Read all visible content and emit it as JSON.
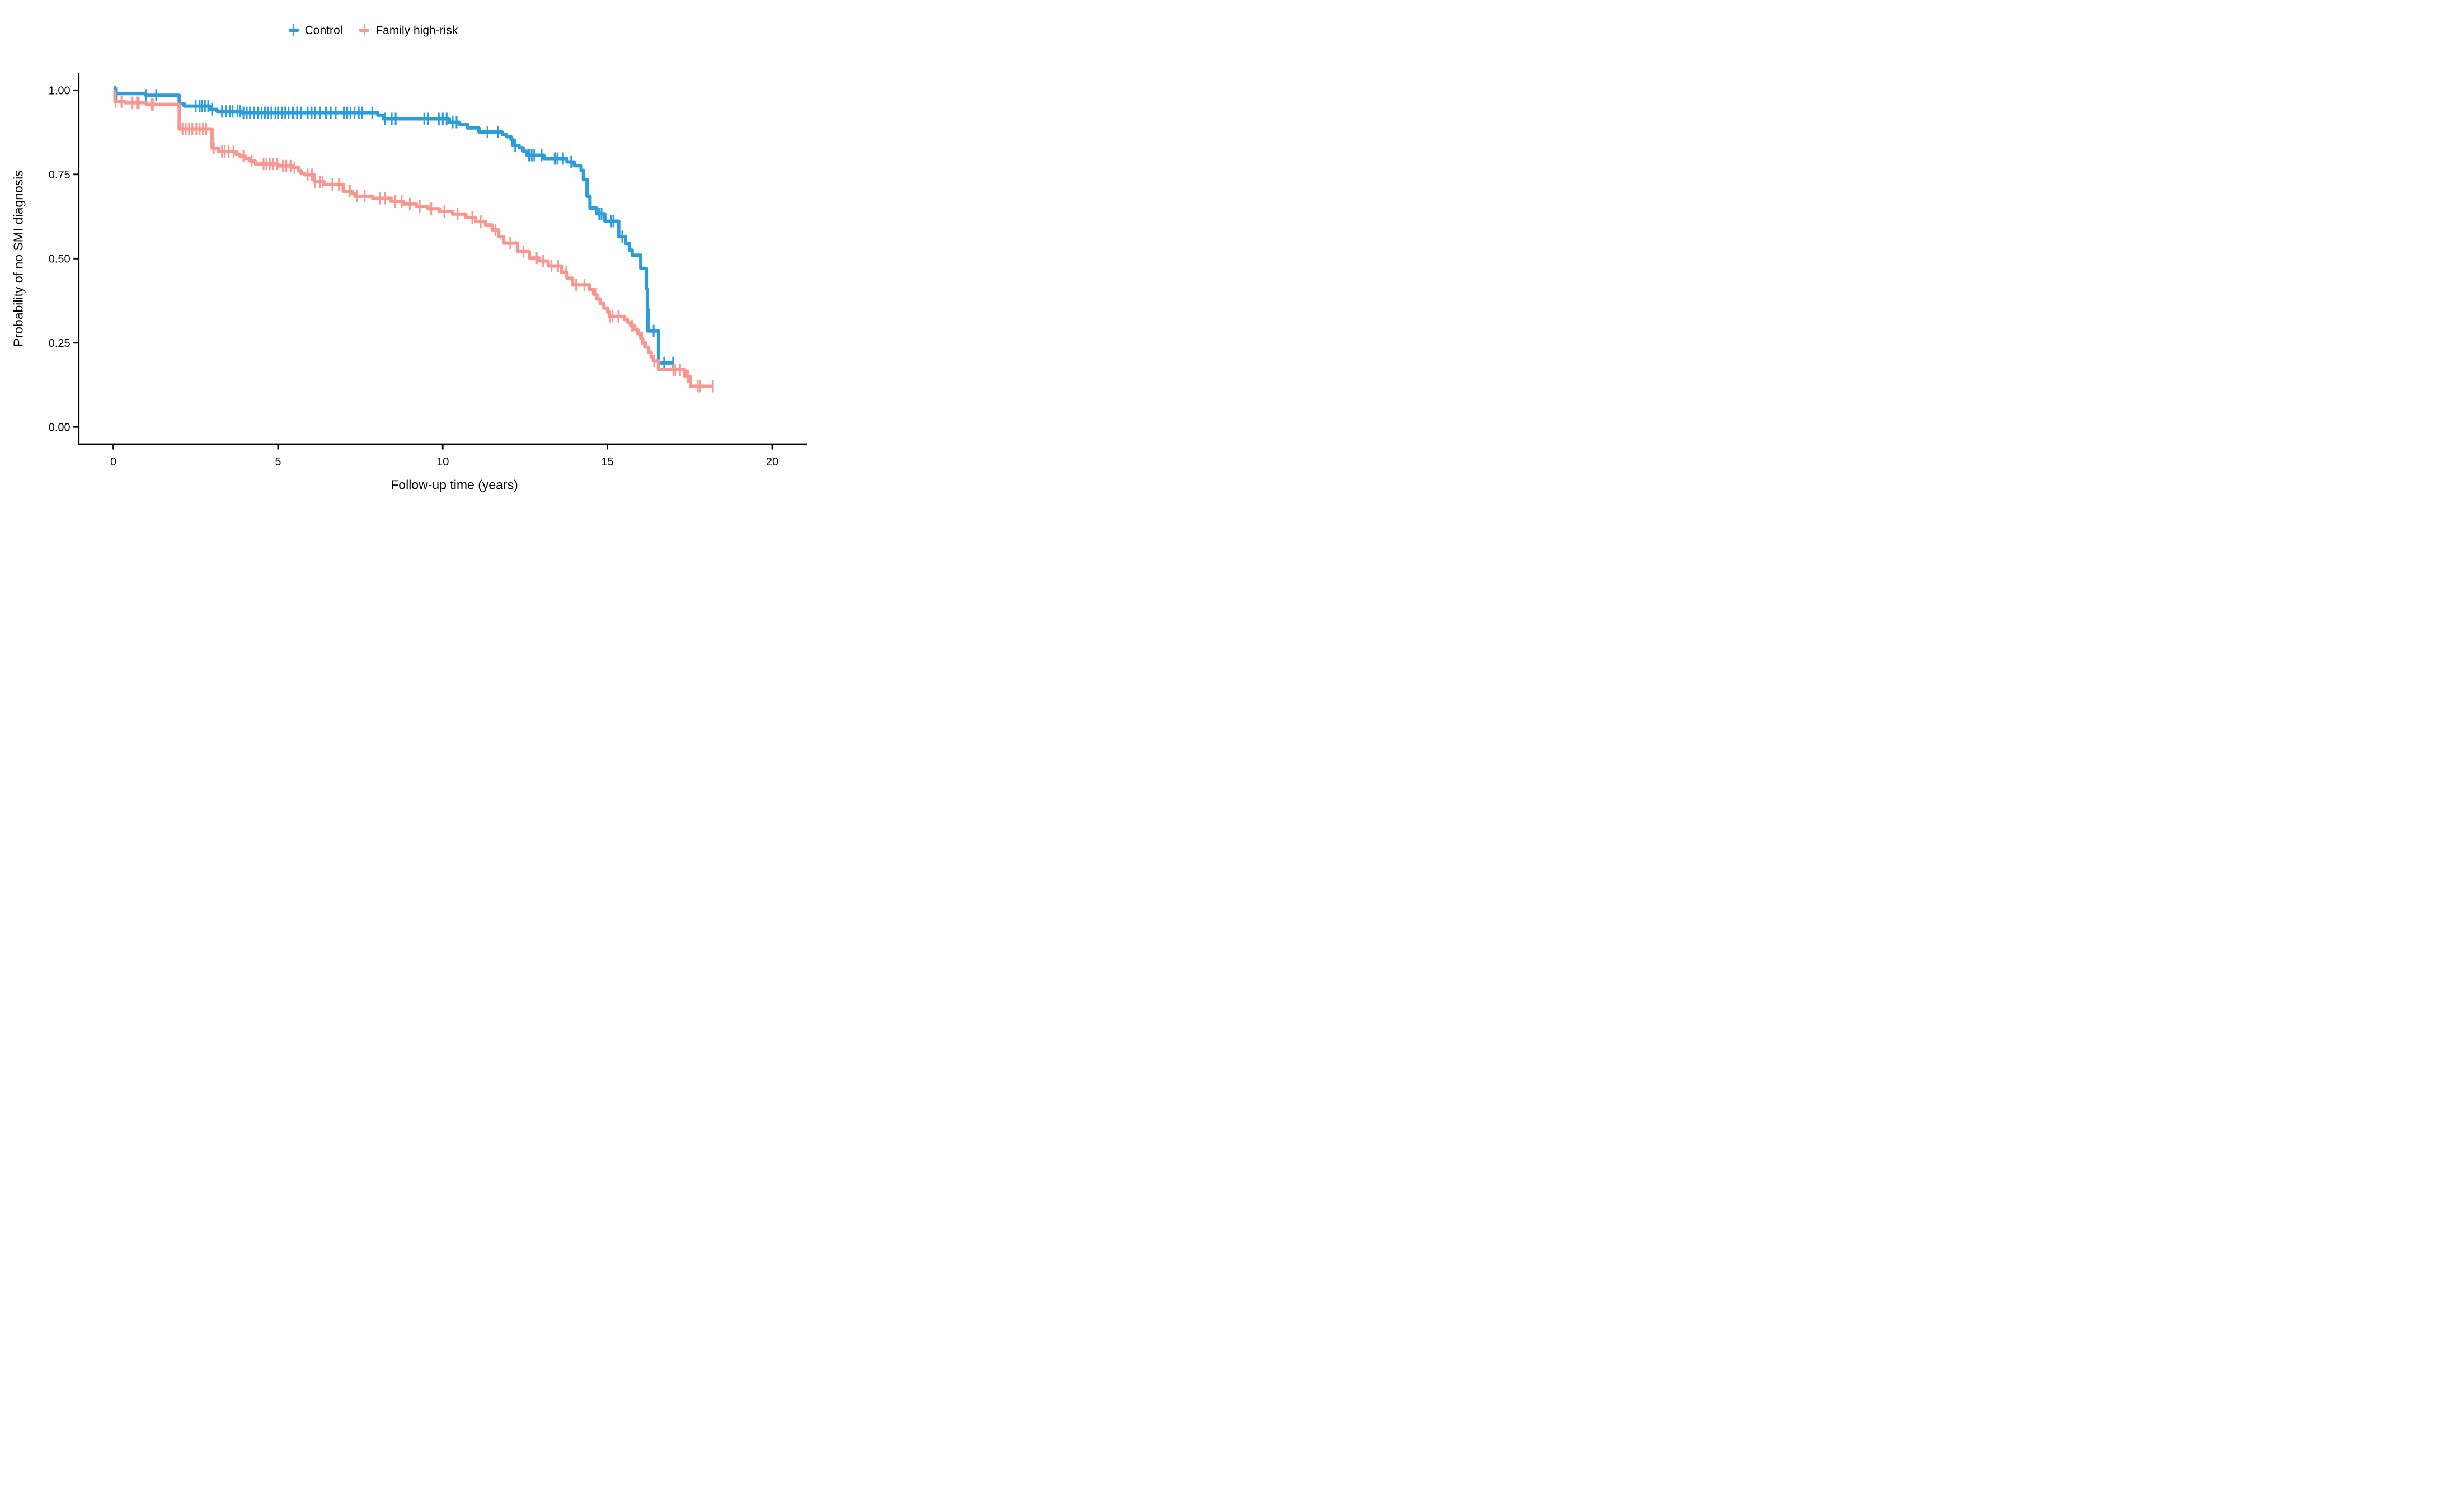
{
  "figure": {
    "legend": {
      "items": [
        {
          "label": "Control",
          "color": "#2D9CDB"
        },
        {
          "label": "Family high-risk",
          "color": "#F9968F"
        }
      ]
    },
    "chart_data": {
      "type": "line",
      "subtype": "kaplan-meier-step",
      "title": "",
      "xlabel": "Follow-up time (years)",
      "ylabel": "Probability of no SMI diagnosis",
      "x_ticks": [
        0,
        5,
        10,
        15,
        20
      ],
      "x_tick_labels": [
        "0",
        "5",
        "10",
        "15",
        "20"
      ],
      "y_ticks": [
        1.0,
        0.75,
        0.5,
        0.25,
        0.0
      ],
      "y_tick_labels": [
        "1.00",
        "0.75",
        "0.50",
        "0.25",
        "0.00"
      ],
      "xlim": [
        -1.05,
        21.07
      ],
      "ylim": [
        -0.051,
        1.052
      ],
      "grid": false,
      "legend_position": "top",
      "axis_color": "#000000",
      "series": [
        {
          "name": "Control",
          "color": "#2D9CDB",
          "end_time": 17.01,
          "steps": [
            [
              0,
              0.995
            ],
            [
              0.07,
              0.99
            ],
            [
              0.98,
              0.985
            ],
            [
              2.0,
              0.96
            ],
            [
              2.15,
              0.953
            ],
            [
              2.93,
              0.943
            ],
            [
              3.15,
              0.937
            ],
            [
              3.9,
              0.933
            ],
            [
              8.03,
              0.926
            ],
            [
              8.2,
              0.915
            ],
            [
              10.2,
              0.905
            ],
            [
              10.5,
              0.899
            ],
            [
              10.75,
              0.888
            ],
            [
              11.1,
              0.876
            ],
            [
              11.81,
              0.868
            ],
            [
              11.93,
              0.862
            ],
            [
              12.07,
              0.854
            ],
            [
              12.13,
              0.836
            ],
            [
              12.32,
              0.829
            ],
            [
              12.44,
              0.819
            ],
            [
              12.55,
              0.807
            ],
            [
              13.07,
              0.797
            ],
            [
              13.77,
              0.787
            ],
            [
              13.99,
              0.776
            ],
            [
              14.2,
              0.762
            ],
            [
              14.27,
              0.735
            ],
            [
              14.38,
              0.685
            ],
            [
              14.47,
              0.65
            ],
            [
              14.67,
              0.633
            ],
            [
              14.92,
              0.611
            ],
            [
              15.34,
              0.565
            ],
            [
              15.55,
              0.545
            ],
            [
              15.67,
              0.525
            ],
            [
              15.75,
              0.51
            ],
            [
              16.01,
              0.471
            ],
            [
              16.18,
              0.41
            ],
            [
              16.21,
              0.35
            ],
            [
              16.23,
              0.285
            ],
            [
              16.55,
              0.19
            ]
          ],
          "censor_times": [
            0.05,
            0.09,
            1.0,
            1.3,
            2.5,
            2.62,
            2.7,
            2.78,
            2.88,
            3.0,
            3.3,
            3.42,
            3.55,
            3.62,
            3.77,
            3.85,
            3.95,
            4.05,
            4.15,
            4.28,
            4.4,
            4.5,
            4.6,
            4.7,
            4.8,
            4.92,
            5.0,
            5.12,
            5.22,
            5.32,
            5.45,
            5.58,
            5.7,
            5.9,
            6.02,
            6.12,
            6.28,
            6.45,
            6.6,
            6.75,
            7.0,
            7.1,
            7.2,
            7.32,
            7.45,
            7.55,
            7.86,
            8.25,
            8.45,
            8.57,
            9.44,
            9.55,
            9.88,
            10.0,
            10.12,
            10.3,
            10.42,
            11.36,
            11.68,
            12.2,
            12.62,
            12.7,
            12.78,
            13.0,
            13.4,
            13.48,
            13.65,
            13.9,
            14.75,
            14.82,
            15.1,
            15.18,
            15.45,
            16.4,
            16.72,
            16.99
          ]
        },
        {
          "name": "Family high-risk",
          "color": "#F9968F",
          "end_time": 18.2,
          "steps": [
            [
              0,
              0.995
            ],
            [
              0.05,
              0.966
            ],
            [
              0.36,
              0.963
            ],
            [
              1.0,
              0.958
            ],
            [
              2.0,
              0.885
            ],
            [
              3.0,
              0.828
            ],
            [
              3.19,
              0.818
            ],
            [
              3.73,
              0.81
            ],
            [
              3.84,
              0.804
            ],
            [
              4.01,
              0.797
            ],
            [
              4.14,
              0.79
            ],
            [
              4.31,
              0.781
            ],
            [
              5.0,
              0.775
            ],
            [
              5.45,
              0.77
            ],
            [
              5.63,
              0.76
            ],
            [
              5.7,
              0.753
            ],
            [
              5.8,
              0.749
            ],
            [
              6.1,
              0.728
            ],
            [
              6.4,
              0.72
            ],
            [
              6.98,
              0.7
            ],
            [
              7.25,
              0.694
            ],
            [
              7.33,
              0.685
            ],
            [
              7.87,
              0.679
            ],
            [
              8.43,
              0.67
            ],
            [
              8.8,
              0.662
            ],
            [
              9.2,
              0.655
            ],
            [
              9.55,
              0.648
            ],
            [
              9.9,
              0.64
            ],
            [
              10.3,
              0.632
            ],
            [
              10.7,
              0.622
            ],
            [
              11.0,
              0.61
            ],
            [
              11.3,
              0.6
            ],
            [
              11.5,
              0.585
            ],
            [
              11.7,
              0.565
            ],
            [
              11.85,
              0.546
            ],
            [
              12.27,
              0.521
            ],
            [
              12.63,
              0.502
            ],
            [
              12.92,
              0.493
            ],
            [
              13.2,
              0.478
            ],
            [
              13.6,
              0.46
            ],
            [
              13.77,
              0.442
            ],
            [
              13.94,
              0.422
            ],
            [
              14.46,
              0.408
            ],
            [
              14.58,
              0.394
            ],
            [
              14.68,
              0.38
            ],
            [
              14.78,
              0.367
            ],
            [
              14.89,
              0.353
            ],
            [
              15.01,
              0.34
            ],
            [
              15.06,
              0.328
            ],
            [
              15.52,
              0.319
            ],
            [
              15.62,
              0.311
            ],
            [
              15.72,
              0.3
            ],
            [
              15.83,
              0.289
            ],
            [
              15.92,
              0.277
            ],
            [
              16.01,
              0.263
            ],
            [
              16.07,
              0.251
            ],
            [
              16.15,
              0.237
            ],
            [
              16.25,
              0.222
            ],
            [
              16.33,
              0.208
            ],
            [
              16.39,
              0.196
            ],
            [
              16.55,
              0.17
            ],
            [
              17.35,
              0.15
            ],
            [
              17.52,
              0.121
            ]
          ],
          "censor_times": [
            0.07,
            0.25,
            0.58,
            0.72,
            0.77,
            1.16,
            1.2,
            2.1,
            2.2,
            2.3,
            2.4,
            2.52,
            2.62,
            2.72,
            2.82,
            3.05,
            3.3,
            3.38,
            3.5,
            3.65,
            3.95,
            4.2,
            4.56,
            4.65,
            4.75,
            4.85,
            4.98,
            5.15,
            5.25,
            5.38,
            5.5,
            5.9,
            6.03,
            6.13,
            6.28,
            6.35,
            6.65,
            6.85,
            7.18,
            7.4,
            7.63,
            8.1,
            8.25,
            8.55,
            8.75,
            9.0,
            9.3,
            9.65,
            10.05,
            10.45,
            10.9,
            11.15,
            11.6,
            12.05,
            12.45,
            12.85,
            13.05,
            13.3,
            13.5,
            13.75,
            14.05,
            14.3,
            14.65,
            15.08,
            15.15,
            15.33,
            15.75,
            16.05,
            16.42,
            17.0,
            17.06,
            17.2,
            17.44,
            17.74,
            17.81,
            18.2
          ]
        }
      ]
    }
  }
}
